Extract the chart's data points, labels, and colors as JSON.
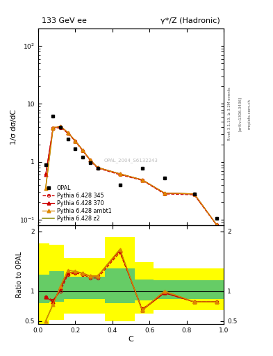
{
  "title_left": "133 GeV ee",
  "title_right": "γ*/Z (Hadronic)",
  "ylabel_main": "1/σ dσ/dC",
  "ylabel_ratio": "Ratio to OPAL",
  "xlabel": "C",
  "rivet_label": "Rivet 3.1.10, ≥ 3.2M events",
  "arxiv_label": "[arXiv:1306.3436]",
  "mcplots_label": "mcplots.cern.ch",
  "analysis_label": "OPAL_2004_S6132243",
  "opal_x": [
    0.04,
    0.08,
    0.12,
    0.16,
    0.2,
    0.24,
    0.28,
    0.32,
    0.44,
    0.56,
    0.68,
    0.84,
    0.96
  ],
  "opal_y": [
    0.88,
    6.2,
    4.0,
    2.5,
    1.7,
    1.2,
    0.97,
    0.78,
    0.4,
    0.78,
    0.52,
    0.28,
    0.105
  ],
  "py345_x": [
    0.04,
    0.08,
    0.12,
    0.16,
    0.2,
    0.24,
    0.28,
    0.32,
    0.44,
    0.56,
    0.68,
    0.84,
    0.96
  ],
  "py345_y": [
    0.6,
    3.8,
    3.9,
    3.1,
    2.25,
    1.55,
    1.05,
    0.78,
    0.6,
    0.48,
    0.28,
    0.27,
    0.082
  ],
  "py370_x": [
    0.04,
    0.08,
    0.12,
    0.16,
    0.2,
    0.24,
    0.28,
    0.32,
    0.44,
    0.56,
    0.68,
    0.84,
    0.96
  ],
  "py370_y": [
    0.6,
    3.9,
    4.1,
    3.2,
    2.3,
    1.58,
    1.08,
    0.8,
    0.62,
    0.49,
    0.29,
    0.28,
    0.083
  ],
  "pyambt1_x": [
    0.04,
    0.08,
    0.12,
    0.16,
    0.2,
    0.24,
    0.28,
    0.32,
    0.44,
    0.56,
    0.68,
    0.84,
    0.96
  ],
  "pyambt1_y": [
    0.35,
    3.9,
    4.1,
    3.2,
    2.3,
    1.58,
    1.08,
    0.8,
    0.62,
    0.49,
    0.29,
    0.28,
    0.083
  ],
  "pyz2_x": [
    0.04,
    0.08,
    0.12,
    0.16,
    0.2,
    0.24,
    0.28,
    0.32,
    0.44,
    0.56,
    0.68,
    0.84,
    0.96
  ],
  "pyz2_y": [
    0.35,
    3.9,
    4.1,
    3.2,
    2.3,
    1.58,
    1.08,
    0.8,
    0.62,
    0.49,
    0.29,
    0.28,
    0.083
  ],
  "ratio_x": [
    0.04,
    0.08,
    0.12,
    0.16,
    0.2,
    0.24,
    0.28,
    0.32,
    0.44,
    0.56,
    0.68,
    0.84,
    0.96
  ],
  "ratio_py345": [
    0.9,
    0.85,
    1.0,
    1.28,
    1.3,
    1.28,
    1.22,
    1.22,
    1.65,
    0.7,
    0.97,
    0.82,
    0.82
  ],
  "ratio_py370": [
    0.9,
    0.82,
    1.05,
    1.3,
    1.32,
    1.3,
    1.25,
    1.25,
    1.68,
    0.68,
    0.97,
    0.82,
    0.82
  ],
  "ratio_pyambt1": [
    0.5,
    0.78,
    1.08,
    1.35,
    1.33,
    1.3,
    1.25,
    1.25,
    1.7,
    0.68,
    1.0,
    0.82,
    0.82
  ],
  "ratio_pyz2": [
    0.5,
    0.78,
    1.08,
    1.35,
    1.33,
    1.3,
    1.25,
    1.25,
    1.7,
    0.68,
    1.0,
    0.82,
    0.82
  ],
  "band_yellow_edges": [
    0.0,
    0.06,
    0.06,
    0.14,
    0.14,
    0.36,
    0.36,
    0.52,
    0.52,
    0.62,
    0.62,
    1.0
  ],
  "band_yellow_lo": [
    0.45,
    0.45,
    0.52,
    0.52,
    0.62,
    0.62,
    0.5,
    0.5,
    0.62,
    0.62,
    0.68,
    0.68
  ],
  "band_yellow_hi": [
    1.8,
    1.8,
    1.78,
    1.78,
    1.55,
    1.55,
    1.9,
    1.9,
    1.48,
    1.48,
    1.38,
    1.38
  ],
  "band_green_edges": [
    0.0,
    0.06,
    0.06,
    0.14,
    0.14,
    0.36,
    0.36,
    0.52,
    0.52,
    0.62,
    0.62,
    1.0
  ],
  "band_green_lo": [
    0.8,
    0.8,
    0.82,
    0.82,
    0.87,
    0.87,
    0.8,
    0.8,
    0.84,
    0.84,
    0.87,
    0.87
  ],
  "band_green_hi": [
    1.28,
    1.28,
    1.33,
    1.33,
    1.24,
    1.24,
    1.38,
    1.38,
    1.2,
    1.2,
    1.18,
    1.18
  ],
  "color_py345": "#cc0000",
  "color_py370": "#cc0000",
  "color_pyambt1": "#dd8800",
  "color_pyz2": "#888800",
  "color_opal": "black",
  "color_yellow": "#ffff00",
  "color_green": "#66cc66",
  "ylim_main": [
    0.08,
    200
  ],
  "ylim_ratio": [
    0.45,
    2.1
  ],
  "xlim": [
    0.0,
    1.0
  ],
  "yticks_main": [
    0.1,
    1,
    10,
    100
  ],
  "yticks_ratio": [
    0.5,
    1.0,
    2.0
  ],
  "xticks": [
    0.0,
    0.2,
    0.4,
    0.6,
    0.8,
    1.0
  ]
}
